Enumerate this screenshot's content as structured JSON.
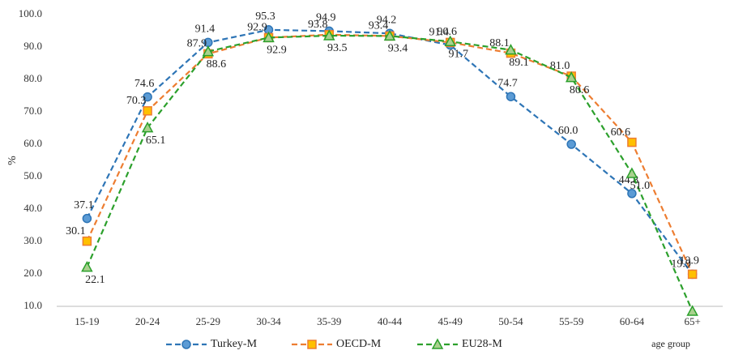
{
  "chart_data": {
    "type": "line",
    "y_label": "%",
    "x_label": "age group",
    "categories": [
      "15-19",
      "20-24",
      "25-29",
      "30-34",
      "35-39",
      "40-44",
      "45-49",
      "50-54",
      "55-59",
      "60-64",
      "65+"
    ],
    "series": [
      {
        "name": "Turkey-M",
        "color": "#2e75b6",
        "marker": "circle",
        "values": [
          37.1,
          74.6,
          91.4,
          95.3,
          94.9,
          94.2,
          90.6,
          74.7,
          60.0,
          44.8,
          19.9
        ],
        "value_labels": [
          "37.1",
          "74.6",
          "91.4",
          "95.3",
          "94.9",
          "94.2",
          "90.6",
          "74.7",
          "60.0",
          "44.8",
          "19.9"
        ]
      },
      {
        "name": "OECD-M",
        "color": "#ed7d31",
        "marker": "square",
        "values": [
          30.1,
          70.3,
          87.9,
          92.9,
          93.8,
          93.4,
          91.4,
          88.1,
          81.0,
          60.6,
          19.9
        ],
        "value_labels": [
          "30.1",
          "70.3",
          "87.9",
          "92.9",
          "93.8",
          "93.4",
          "91.4",
          "88.1",
          "81.0",
          "60.6",
          "19.9"
        ]
      },
      {
        "name": "EU28-M",
        "color": "#2ca02c",
        "marker": "triangle",
        "values": [
          22.1,
          65.1,
          88.6,
          92.9,
          93.5,
          93.4,
          91.7,
          89.1,
          80.6,
          51.0,
          8.5
        ],
        "value_labels": [
          "22.1",
          "65.1",
          "88.6",
          "92.9",
          "93.5",
          "93.4",
          "91.7",
          "89.1",
          "80.6",
          "51.0",
          null
        ]
      }
    ],
    "ylim": [
      10,
      100
    ],
    "yticks": [
      {
        "value": 10,
        "label": "10.0"
      },
      {
        "value": 20,
        "label": "20.0"
      },
      {
        "value": 30,
        "label": "30.0"
      },
      {
        "value": 40,
        "label": "40.0"
      },
      {
        "value": 50,
        "label": "50.0"
      },
      {
        "value": 60,
        "label": "60.0"
      },
      {
        "value": 70,
        "label": "70.0"
      },
      {
        "value": 80,
        "label": "80.0"
      },
      {
        "value": 90,
        "label": "90.0"
      },
      {
        "value": 100,
        "label": "100.0"
      }
    ],
    "grid": false
  }
}
